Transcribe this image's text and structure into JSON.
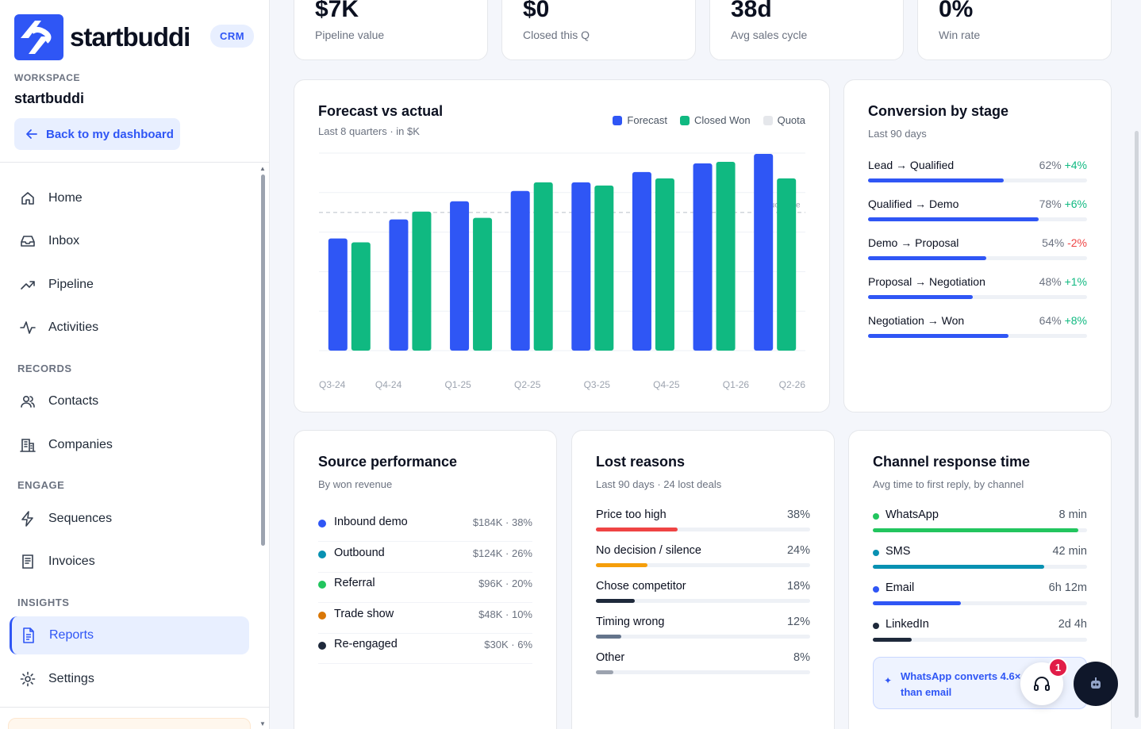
{
  "brand": {
    "name": "startbuddi",
    "badge": "CRM"
  },
  "workspace": {
    "label": "WORKSPACE",
    "name": "startbuddi"
  },
  "back_button": "Back to my dashboard",
  "nav": {
    "home": "Home",
    "inbox": "Inbox",
    "pipeline": "Pipeline",
    "activities": "Activities",
    "records_label": "RECORDS",
    "contacts": "Contacts",
    "companies": "Companies",
    "engage_label": "ENGAGE",
    "sequences": "Sequences",
    "invoices": "Invoices",
    "insights_label": "INSIGHTS",
    "reports": "Reports",
    "settings": "Settings"
  },
  "kpis": [
    {
      "value": "$7K",
      "label": "Pipeline value"
    },
    {
      "value": "$0",
      "label": "Closed this Q"
    },
    {
      "value": "38d",
      "label": "Avg sales cycle"
    },
    {
      "value": "0%",
      "label": "Win rate"
    }
  ],
  "forecast": {
    "title": "Forecast vs actual",
    "subtitle": "Last 8 quarters · in $K",
    "legend": [
      "Forecast",
      "Closed Won",
      "Quota"
    ],
    "quota_label": "Quota line"
  },
  "chart_data": {
    "type": "bar",
    "title": "Forecast vs actual",
    "categories": [
      "Q3-24",
      "Q4-24",
      "Q1-25",
      "Q2-25",
      "Q3-25",
      "Q4-25",
      "Q1-26",
      "Q2-26"
    ],
    "series": [
      {
        "name": "Forecast",
        "values": [
          142,
          166,
          189,
          202,
          213,
          226,
          237,
          249
        ]
      },
      {
        "name": "Closed Won",
        "values": [
          137,
          176,
          168,
          213,
          209,
          218,
          239,
          218
        ]
      }
    ],
    "quota": 175,
    "ylim": [
      0,
      250
    ],
    "colors": {
      "forecast": "#2f56f5",
      "closed_won": "#10b981",
      "quota": "#e5e7eb"
    }
  },
  "conversion": {
    "title": "Conversion by stage",
    "subtitle": "Last 90 days",
    "stages": [
      {
        "label": "Lead → Qualified",
        "pct": "62%",
        "delta": "+4%",
        "value": 0.62,
        "dir": "pos"
      },
      {
        "label": "Qualified → Demo",
        "pct": "78%",
        "delta": "+6%",
        "value": 0.78,
        "dir": "pos"
      },
      {
        "label": "Demo → Proposal",
        "pct": "54%",
        "delta": "-2%",
        "value": 0.54,
        "dir": "neg"
      },
      {
        "label": "Proposal → Negotiation",
        "pct": "48%",
        "delta": "+1%",
        "value": 0.48,
        "dir": "pos"
      },
      {
        "label": "Negotiation → Won",
        "pct": "64%",
        "delta": "+8%",
        "value": 0.64,
        "dir": "pos"
      }
    ]
  },
  "sources": {
    "title": "Source performance",
    "subtitle": "By won revenue",
    "rows": [
      {
        "name": "Inbound demo",
        "value": "$184K · 38%",
        "color": "#2f56f5"
      },
      {
        "name": "Outbound",
        "value": "$124K · 26%",
        "color": "#0891b2"
      },
      {
        "name": "Referral",
        "value": "$96K · 20%",
        "color": "#22c55e"
      },
      {
        "name": "Trade show",
        "value": "$48K · 10%",
        "color": "#d97706"
      },
      {
        "name": "Re-engaged",
        "value": "$30K · 6%",
        "color": "#1e293b"
      }
    ]
  },
  "lost": {
    "title": "Lost reasons",
    "subtitle": "Last 90 days · 24 lost deals",
    "rows": [
      {
        "name": "Price too high",
        "pct": "38%",
        "value": 0.38,
        "color": "#ef4444"
      },
      {
        "name": "No decision / silence",
        "pct": "24%",
        "value": 0.24,
        "color": "#f59e0b"
      },
      {
        "name": "Chose competitor",
        "pct": "18%",
        "value": 0.18,
        "color": "#1e293b"
      },
      {
        "name": "Timing wrong",
        "pct": "12%",
        "value": 0.12,
        "color": "#64748b"
      },
      {
        "name": "Other",
        "pct": "8%",
        "value": 0.08,
        "color": "#9ca3af"
      }
    ]
  },
  "channels": {
    "title": "Channel response time",
    "subtitle": "Avg time to first reply, by channel",
    "rows": [
      {
        "name": "WhatsApp",
        "time": "8 min",
        "value": 0.96,
        "color": "#22c55e"
      },
      {
        "name": "SMS",
        "time": "42 min",
        "value": 0.8,
        "color": "#0891b2"
      },
      {
        "name": "Email",
        "time": "6h 12m",
        "value": 0.41,
        "color": "#2f56f5"
      },
      {
        "name": "LinkedIn",
        "time": "2d 4h",
        "value": 0.18,
        "color": "#1e293b"
      }
    ],
    "insight": "WhatsApp converts 4.6× than email"
  },
  "help_badge": "1"
}
